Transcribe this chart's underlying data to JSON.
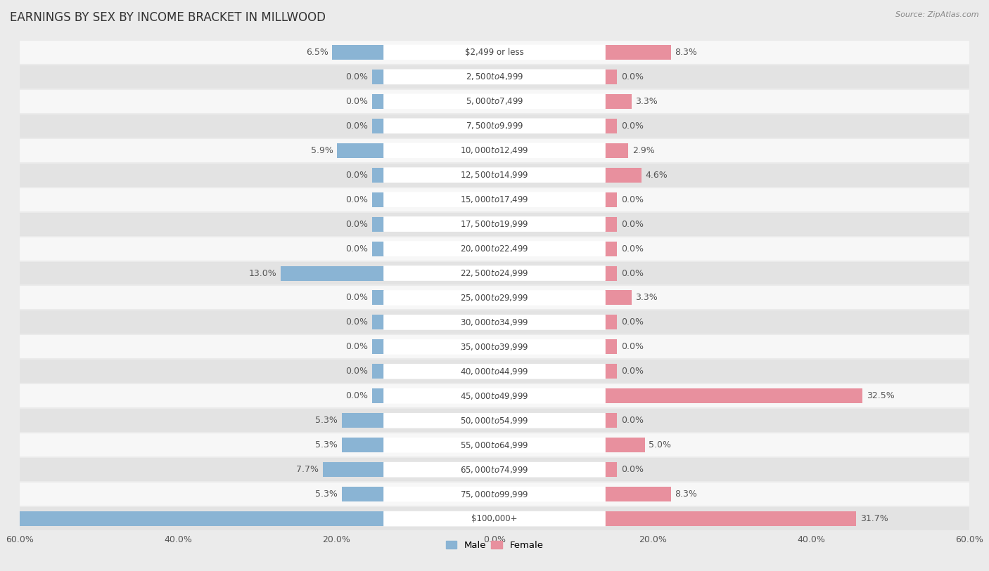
{
  "title": "EARNINGS BY SEX BY INCOME BRACKET IN MILLWOOD",
  "source": "Source: ZipAtlas.com",
  "categories": [
    "$2,499 or less",
    "$2,500 to $4,999",
    "$5,000 to $7,499",
    "$7,500 to $9,999",
    "$10,000 to $12,499",
    "$12,500 to $14,999",
    "$15,000 to $17,499",
    "$17,500 to $19,999",
    "$20,000 to $22,499",
    "$22,500 to $24,999",
    "$25,000 to $29,999",
    "$30,000 to $34,999",
    "$35,000 to $39,999",
    "$40,000 to $44,999",
    "$45,000 to $49,999",
    "$50,000 to $54,999",
    "$55,000 to $64,999",
    "$65,000 to $74,999",
    "$75,000 to $99,999",
    "$100,000+"
  ],
  "male_values": [
    6.5,
    0.0,
    0.0,
    0.0,
    5.9,
    0.0,
    0.0,
    0.0,
    0.0,
    13.0,
    0.0,
    0.0,
    0.0,
    0.0,
    0.0,
    5.3,
    5.3,
    7.7,
    5.3,
    50.9
  ],
  "female_values": [
    8.3,
    0.0,
    3.3,
    0.0,
    2.9,
    4.6,
    0.0,
    0.0,
    0.0,
    0.0,
    3.3,
    0.0,
    0.0,
    0.0,
    32.5,
    0.0,
    5.0,
    0.0,
    8.3,
    31.7
  ],
  "male_color": "#8ab4d4",
  "female_color": "#e8909e",
  "label_color": "#555555",
  "axis_max": 60.0,
  "bg_color": "#ebebeb",
  "row_even_color": "#f7f7f7",
  "row_odd_color": "#e3e3e3",
  "bar_height": 0.6,
  "min_bar": 1.5,
  "title_fontsize": 12,
  "label_fontsize": 9,
  "tick_fontsize": 9,
  "category_fontsize": 8.5
}
